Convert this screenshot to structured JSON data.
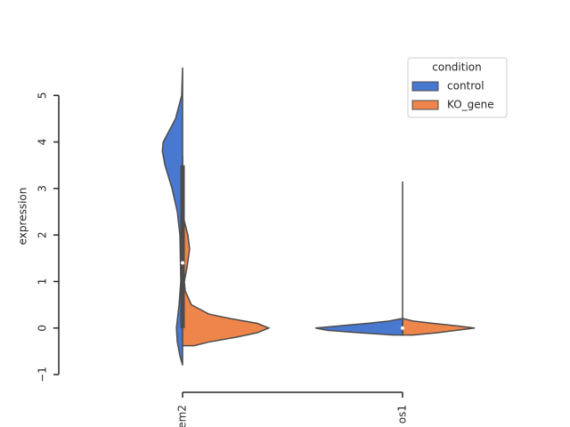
{
  "chart_data": {
    "type": "violin",
    "ylabel": "expression",
    "categories": [
      "em2",
      "os1"
    ],
    "ylim": [
      -1.2,
      6.0
    ],
    "yticks": [
      {
        "value": -1,
        "label": "−1"
      },
      0,
      1,
      2,
      3,
      4,
      5
    ],
    "legend_title": "condition",
    "legend": "upper right",
    "series": [
      {
        "name": "control",
        "color": "#4878d0",
        "violins": [
          {
            "y": [
              -0.8,
              -0.6,
              -0.3,
              0,
              0.5,
              1,
              2,
              2.5,
              3,
              3.5,
              3.8,
              4,
              4.5,
              5,
              5.6
            ],
            "density": [
              0,
              0.03,
              0.06,
              0.07,
              0.04,
              0.02,
              0.03,
              0.06,
              0.12,
              0.2,
              0.23,
              0.22,
              0.08,
              0.01,
              0
            ]
          },
          {
            "y": [
              -0.15,
              -0.1,
              -0.05,
              0,
              0.05,
              0.1,
              0.15,
              0.2
            ],
            "density": [
              0.1,
              0.5,
              0.85,
              0.99,
              0.7,
              0.4,
              0.15,
              0.02
            ]
          }
        ]
      },
      {
        "name": "KO_gene",
        "color": "#ee854a",
        "violins": [
          {
            "y": [
              -0.38,
              -0.3,
              -0.2,
              -0.1,
              0,
              0.1,
              0.2,
              0.3,
              0.5,
              0.8,
              1.0,
              1.3,
              1.7,
              2.0,
              2.3,
              2.5
            ],
            "density": [
              0.13,
              0.3,
              0.6,
              0.85,
              0.98,
              0.85,
              0.55,
              0.3,
              0.1,
              0.03,
              0.02,
              0.05,
              0.08,
              0.06,
              0.02,
              0
            ]
          },
          {
            "y": [
              -0.15,
              -0.1,
              0,
              0.05,
              0.1,
              0.15,
              0.2
            ],
            "density": [
              0.12,
              0.4,
              0.82,
              0.6,
              0.35,
              0.12,
              0.01
            ]
          }
        ]
      }
    ],
    "box": [
      {
        "whisker_low": -0.05,
        "q1": 0.0,
        "median": 1.4,
        "q3": 3.5,
        "whisker_high": 3.7
      },
      {
        "whisker_low": -0.1,
        "q1": 0.0,
        "median": 0.0,
        "q3": 0.0,
        "whisker_high": 3.15
      }
    ]
  }
}
